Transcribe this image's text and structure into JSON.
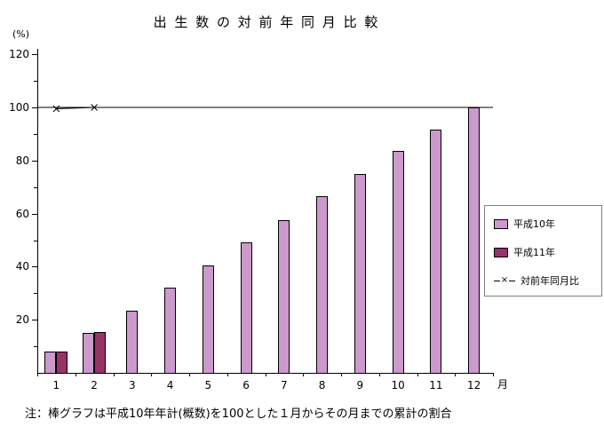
{
  "chart": {
    "title": "出 生 数 の 対 前 年 同 月 比 較",
    "y_unit": "(%)",
    "x_unit": "月",
    "note": "注：棒グラフは平成10年年計(概数)を100とした１月からその月までの累計の割合",
    "legend": [
      {
        "label": "平成10年",
        "type": "bar",
        "color": "#CC99CC"
      },
      {
        "label": "平成11年",
        "type": "bar",
        "color": "#993366"
      },
      {
        "label": "対前年同月比",
        "type": "line",
        "marker": "×"
      }
    ]
  },
  "chart_data": {
    "type": "bar",
    "title": "出生数の対前年同月比較",
    "categories": [
      1,
      2,
      3,
      4,
      5,
      6,
      7,
      8,
      9,
      10,
      11,
      12
    ],
    "xlabel": "月",
    "ylabel": "(%)",
    "ylim": [
      0,
      120
    ],
    "ytick_major_step": 20,
    "ytick_minor_step": 10,
    "grid": false,
    "reference_line_y": 100,
    "legend_position": "right",
    "series": [
      {
        "name": "平成10年",
        "type": "bar",
        "color": "#CC99CC",
        "values": [
          8,
          15,
          23.5,
          32,
          40.5,
          49,
          57.5,
          66.5,
          75,
          83.5,
          91.5,
          100
        ]
      },
      {
        "name": "平成11年",
        "type": "bar",
        "color": "#993366",
        "values": [
          8,
          15.5,
          null,
          null,
          null,
          null,
          null,
          null,
          null,
          null,
          null,
          null
        ]
      },
      {
        "name": "対前年同月比",
        "type": "line",
        "marker": "x",
        "color": "#000000",
        "values": [
          99.5,
          100,
          null,
          null,
          null,
          null,
          null,
          null,
          null,
          null,
          null,
          null
        ]
      }
    ]
  }
}
